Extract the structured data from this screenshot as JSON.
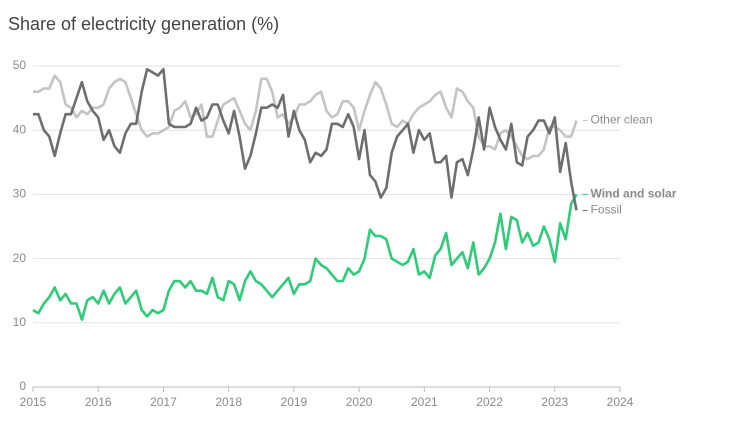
{
  "chart_data": {
    "type": "line",
    "title": "Share of electricity generation (%)",
    "x": [
      2015,
      2015.083,
      2015.167,
      2015.25,
      2015.333,
      2015.417,
      2015.5,
      2015.583,
      2015.667,
      2015.75,
      2015.833,
      2015.917,
      2016,
      2016.083,
      2016.167,
      2016.25,
      2016.333,
      2016.417,
      2016.5,
      2016.583,
      2016.667,
      2016.75,
      2016.833,
      2016.917,
      2017,
      2017.083,
      2017.167,
      2017.25,
      2017.333,
      2017.417,
      2017.5,
      2017.583,
      2017.667,
      2017.75,
      2017.833,
      2017.917,
      2018,
      2018.083,
      2018.167,
      2018.25,
      2018.333,
      2018.417,
      2018.5,
      2018.583,
      2018.667,
      2018.75,
      2018.833,
      2018.917,
      2019,
      2019.083,
      2019.167,
      2019.25,
      2019.333,
      2019.417,
      2019.5,
      2019.583,
      2019.667,
      2019.75,
      2019.833,
      2019.917,
      2020,
      2020.083,
      2020.167,
      2020.25,
      2020.333,
      2020.417,
      2020.5,
      2020.583,
      2020.667,
      2020.75,
      2020.833,
      2020.917,
      2021,
      2021.083,
      2021.167,
      2021.25,
      2021.333,
      2021.417,
      2021.5,
      2021.583,
      2021.667,
      2021.75,
      2021.833,
      2021.917,
      2022,
      2022.083,
      2022.167,
      2022.25,
      2022.333,
      2022.417,
      2022.5,
      2022.583,
      2022.667,
      2022.75,
      2022.833,
      2022.917,
      2023,
      2023.083,
      2023.167,
      2023.25,
      2023.333
    ],
    "series": [
      {
        "name": "Other clean",
        "color": "#c4c4c4",
        "values": [
          46,
          46,
          46.5,
          46.5,
          48.5,
          47.5,
          44,
          43.5,
          42,
          43,
          42.5,
          43.5,
          43.5,
          44,
          46.5,
          47.5,
          48,
          47.5,
          45,
          42.5,
          40,
          39,
          39.5,
          39.5,
          40,
          40.5,
          43,
          43.5,
          44.5,
          42,
          42.5,
          44,
          39,
          39,
          41.5,
          44,
          44.5,
          45,
          43,
          41,
          40,
          43,
          48,
          48,
          46,
          42,
          42.5,
          41,
          42,
          44,
          44,
          44.5,
          45.5,
          46,
          43,
          42,
          42.5,
          44.5,
          44.5,
          43.5,
          40,
          43,
          45.5,
          47.5,
          46.5,
          44,
          41,
          40.5,
          41.5,
          41,
          42.5,
          43.5,
          44,
          44.5,
          45.5,
          46,
          43.5,
          42,
          46.5,
          46,
          44.5,
          43.5,
          39,
          37.5,
          37.5,
          37,
          39.5,
          40,
          39,
          37.5,
          36,
          35.5,
          36,
          36,
          37,
          40.5,
          40.5,
          40,
          39,
          39,
          41.5
        ]
      },
      {
        "name": "Wind and solar",
        "color": "#2ecc78",
        "values": [
          12,
          11.5,
          13,
          14,
          15.5,
          13.5,
          14.5,
          13,
          13,
          10.5,
          13.5,
          14,
          13,
          15,
          13,
          14.5,
          15.5,
          13,
          14,
          15,
          12,
          11,
          12,
          11.5,
          12,
          15,
          16.5,
          16.5,
          15.5,
          16.5,
          15,
          15,
          14.5,
          17,
          14,
          13.5,
          16.5,
          16,
          13.5,
          16.5,
          18,
          16.5,
          16,
          15,
          14,
          15,
          16,
          17,
          14.5,
          16,
          16,
          16.5,
          20,
          19,
          18.5,
          17.5,
          16.5,
          16.5,
          18.5,
          17.5,
          18,
          20,
          24.5,
          23.5,
          23.5,
          23,
          20,
          19.5,
          19,
          19.5,
          21.5,
          17.5,
          18,
          17,
          20.5,
          21.5,
          24,
          19,
          20,
          21,
          18.5,
          22.5,
          17.5,
          18.5,
          20,
          22.5,
          27,
          21.5,
          26.5,
          26,
          22.5,
          24,
          22,
          22.5,
          25,
          23,
          19.5,
          25.5,
          23,
          28.5,
          30
        ]
      },
      {
        "name": "Fossil",
        "color": "#6e6e6e",
        "values": [
          42.5,
          42.5,
          40,
          39,
          36,
          39.5,
          42.5,
          42.5,
          45,
          47.5,
          44.5,
          43,
          42,
          38.5,
          40,
          37.5,
          36.5,
          39.5,
          41,
          41,
          46,
          49.5,
          49,
          48.5,
          49.5,
          41,
          40.5,
          40.5,
          40.5,
          41,
          43.5,
          41.5,
          42,
          44,
          44,
          41.5,
          39.5,
          43,
          39,
          34,
          36,
          39.5,
          43.5,
          43.5,
          44,
          43.5,
          45.5,
          39,
          43,
          40,
          38.5,
          35,
          36.5,
          36,
          37,
          41,
          41,
          40.5,
          42.5,
          40.5,
          35.5,
          40,
          33,
          32,
          29.5,
          31,
          36.5,
          39,
          40,
          41,
          36.5,
          40,
          38.5,
          39.5,
          35,
          35,
          36,
          29.5,
          35,
          35.5,
          33,
          37,
          42,
          37,
          43.5,
          40.5,
          38.5,
          37,
          41,
          35,
          34.5,
          39,
          40,
          41.5,
          41.5,
          39.5,
          42,
          33.5,
          38,
          32,
          27.5
        ]
      }
    ],
    "xlim": [
      2015,
      2024
    ],
    "xticks": [
      2015,
      2016,
      2017,
      2018,
      2019,
      2020,
      2021,
      2022,
      2023,
      2024
    ],
    "ylim": [
      0,
      50
    ],
    "yticks": [
      0,
      10,
      20,
      30,
      40,
      50
    ],
    "grid": true
  }
}
